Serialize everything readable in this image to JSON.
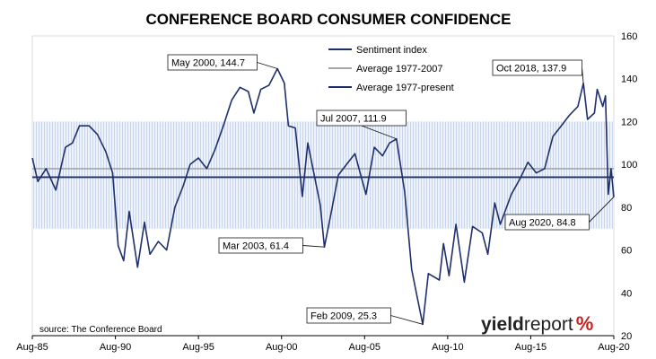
{
  "chart_data": {
    "type": "line",
    "title": "CONFERENCE BOARD CONSUMER CONFIDENCE",
    "xlabel": "",
    "ylabel": "",
    "x_range": [
      "1985-08",
      "2020-08"
    ],
    "x_tick_labels": [
      "Aug-85",
      "Aug-90",
      "Aug-95",
      "Aug-00",
      "Aug-05",
      "Aug-10",
      "Aug-15",
      "Aug-20"
    ],
    "y_axis_side": "right",
    "ylim": [
      20,
      160
    ],
    "y_ticks": [
      20,
      40,
      60,
      80,
      100,
      120,
      140,
      160
    ],
    "grid": false,
    "legend_position": "top-center",
    "band": {
      "low": 70,
      "high": 120
    },
    "reference_lines": [
      {
        "name": "Average 1977-2007",
        "value": 98,
        "color": "#a6a6a6"
      },
      {
        "name": "Average 1977-present",
        "value": 94,
        "color": "#1f2f6b"
      }
    ],
    "series": [
      {
        "name": "Sentiment index",
        "color": "#1f2f6b",
        "points": [
          [
            "1985-08",
            103
          ],
          [
            "1985-12",
            92
          ],
          [
            "1986-06",
            98
          ],
          [
            "1987-01",
            88
          ],
          [
            "1987-08",
            108
          ],
          [
            "1988-01",
            110
          ],
          [
            "1988-06",
            118
          ],
          [
            "1989-01",
            118
          ],
          [
            "1989-07",
            114
          ],
          [
            "1990-01",
            106
          ],
          [
            "1990-06",
            96
          ],
          [
            "1990-10",
            62
          ],
          [
            "1991-02",
            55
          ],
          [
            "1991-06",
            78
          ],
          [
            "1991-12",
            52
          ],
          [
            "1992-05",
            73
          ],
          [
            "1992-09",
            58
          ],
          [
            "1993-03",
            64
          ],
          [
            "1993-09",
            60
          ],
          [
            "1994-03",
            80
          ],
          [
            "1994-09",
            90
          ],
          [
            "1995-02",
            100
          ],
          [
            "1995-08",
            103
          ],
          [
            "1996-02",
            98
          ],
          [
            "1996-08",
            107
          ],
          [
            "1997-02",
            118
          ],
          [
            "1997-08",
            130
          ],
          [
            "1998-02",
            136
          ],
          [
            "1998-08",
            134
          ],
          [
            "1998-12",
            124
          ],
          [
            "1999-05",
            135
          ],
          [
            "1999-11",
            137
          ],
          [
            "2000-05",
            144.7
          ],
          [
            "2000-10",
            138
          ],
          [
            "2001-01",
            118
          ],
          [
            "2001-06",
            117
          ],
          [
            "2001-11",
            85
          ],
          [
            "2002-03",
            110
          ],
          [
            "2002-07",
            97
          ],
          [
            "2002-12",
            81
          ],
          [
            "2003-03",
            61.4
          ],
          [
            "2003-08",
            78
          ],
          [
            "2004-01",
            95
          ],
          [
            "2004-07",
            100
          ],
          [
            "2005-01",
            105
          ],
          [
            "2005-09",
            86
          ],
          [
            "2006-03",
            108
          ],
          [
            "2006-09",
            104
          ],
          [
            "2007-02",
            110
          ],
          [
            "2007-07",
            111.9
          ],
          [
            "2008-01",
            87
          ],
          [
            "2008-06",
            51
          ],
          [
            "2008-10",
            38
          ],
          [
            "2009-02",
            25.3
          ],
          [
            "2009-06",
            49
          ],
          [
            "2010-02",
            46
          ],
          [
            "2010-05",
            63
          ],
          [
            "2010-09",
            48
          ],
          [
            "2011-02",
            72
          ],
          [
            "2011-08",
            45
          ],
          [
            "2012-02",
            71
          ],
          [
            "2012-09",
            68
          ],
          [
            "2013-01",
            58
          ],
          [
            "2013-06",
            82
          ],
          [
            "2013-10",
            72
          ],
          [
            "2014-06",
            86
          ],
          [
            "2014-12",
            93
          ],
          [
            "2015-06",
            101
          ],
          [
            "2015-12",
            96
          ],
          [
            "2016-06",
            98
          ],
          [
            "2016-12",
            113
          ],
          [
            "2017-06",
            118
          ],
          [
            "2017-12",
            123
          ],
          [
            "2018-06",
            127
          ],
          [
            "2018-10",
            137.9
          ],
          [
            "2019-01",
            121
          ],
          [
            "2019-06",
            124
          ],
          [
            "2019-08",
            135
          ],
          [
            "2019-12",
            127
          ],
          [
            "2020-02",
            132
          ],
          [
            "2020-04",
            86
          ],
          [
            "2020-06",
            98
          ],
          [
            "2020-08",
            84.8
          ]
        ]
      }
    ],
    "annotations": [
      {
        "label": "May 2000, 144.7",
        "x": "2000-05",
        "y": 144.7
      },
      {
        "label": "Oct 2018, 137.9",
        "x": "2018-10",
        "y": 137.9
      },
      {
        "label": "Jul 2007, 111.9",
        "x": "2007-07",
        "y": 111.9
      },
      {
        "label": "Mar 2003, 61.4",
        "x": "2003-03",
        "y": 61.4
      },
      {
        "label": "Feb 2009, 25.3",
        "x": "2009-02",
        "y": 25.3
      },
      {
        "label": "Aug 2020, 84.8",
        "x": "2020-08",
        "y": 84.8
      }
    ],
    "source": "source: The Conference Board"
  },
  "logo": {
    "part1": "yield",
    "part2": "report",
    "symbol": "%"
  }
}
